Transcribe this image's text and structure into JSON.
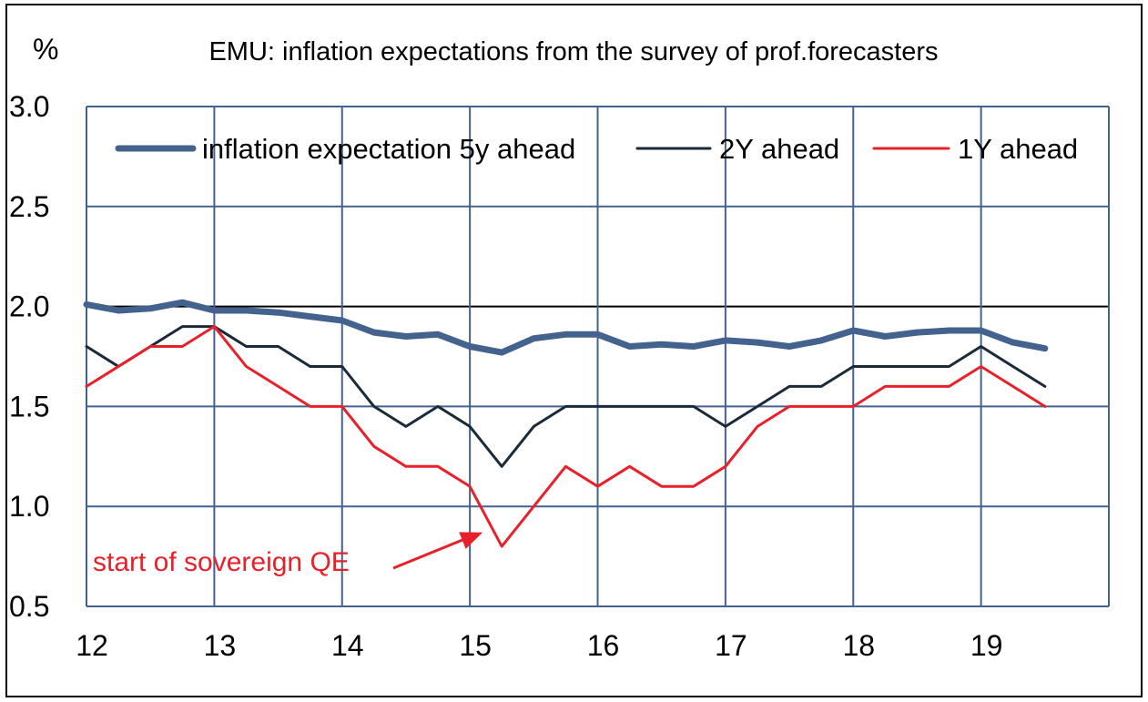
{
  "chart_data": {
    "type": "line",
    "title": "EMU: inflation expectations from the survey of prof.forecasters",
    "unit_label": "%",
    "ylim": [
      0.5,
      3.0
    ],
    "xlim": [
      12,
      20
    ],
    "yticks": [
      "0.5",
      "1.0",
      "1.5",
      "2.0",
      "2.5",
      "3.0"
    ],
    "yticks_values": [
      0.5,
      1.0,
      1.5,
      2.0,
      2.5,
      3.0
    ],
    "xticks": [
      "12",
      "13",
      "14",
      "15",
      "16",
      "17",
      "18",
      "19"
    ],
    "xticks_values": [
      12,
      13,
      14,
      15,
      16,
      17,
      18,
      19
    ],
    "grid": true,
    "legend_position": "top",
    "x": [
      12.0,
      12.25,
      12.5,
      12.75,
      13.0,
      13.25,
      13.5,
      13.75,
      14.0,
      14.25,
      14.5,
      14.75,
      15.0,
      15.25,
      15.5,
      15.75,
      16.0,
      16.25,
      16.5,
      16.75,
      17.0,
      17.25,
      17.5,
      17.75,
      18.0,
      18.25,
      18.5,
      18.75,
      19.0,
      19.25,
      19.5
    ],
    "series": [
      {
        "name": "inflation expectation 5y ahead",
        "color": "#44628e",
        "values": [
          2.01,
          1.98,
          1.99,
          2.02,
          1.98,
          1.98,
          1.97,
          1.95,
          1.93,
          1.87,
          1.85,
          1.86,
          1.8,
          1.77,
          1.84,
          1.86,
          1.86,
          1.8,
          1.81,
          1.8,
          1.83,
          1.82,
          1.8,
          1.83,
          1.88,
          1.85,
          1.87,
          1.88,
          1.88,
          1.82,
          1.79
        ]
      },
      {
        "name": "2Y ahead",
        "color": "#1b2a38",
        "values": [
          1.8,
          1.7,
          1.8,
          1.9,
          1.9,
          1.8,
          1.8,
          1.7,
          1.7,
          1.5,
          1.4,
          1.5,
          1.4,
          1.2,
          1.4,
          1.5,
          1.5,
          1.5,
          1.5,
          1.5,
          1.4,
          1.5,
          1.6,
          1.6,
          1.7,
          1.7,
          1.7,
          1.7,
          1.8,
          1.7,
          1.6
        ]
      },
      {
        "name": "1Y ahead",
        "color": "#e8202a",
        "values": [
          1.6,
          1.7,
          1.8,
          1.8,
          1.9,
          1.7,
          1.6,
          1.5,
          1.5,
          1.3,
          1.2,
          1.2,
          1.1,
          0.8,
          1.0,
          1.2,
          1.1,
          1.2,
          1.1,
          1.1,
          1.2,
          1.4,
          1.5,
          1.5,
          1.5,
          1.6,
          1.6,
          1.6,
          1.7,
          1.6,
          1.5
        ]
      }
    ],
    "annotations": [
      {
        "text": "start of sovereign QE",
        "color": "#e8202a",
        "target_x": 15.1,
        "target_y": 0.87
      }
    ]
  }
}
